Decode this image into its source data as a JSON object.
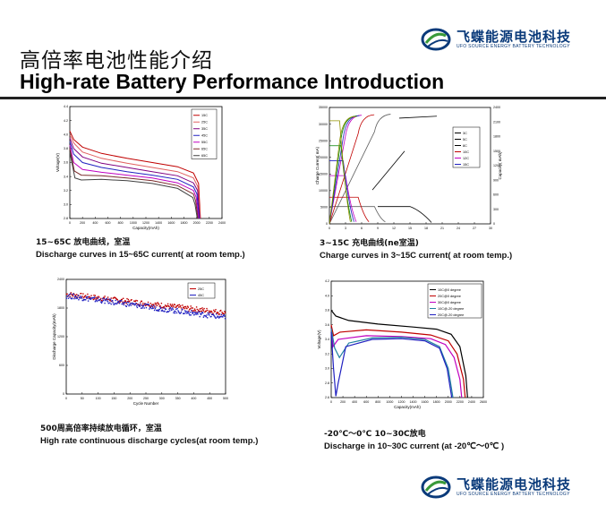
{
  "header": {
    "title_cn": "高倍率电池性能介绍",
    "title_en": "High-rate Battery Performance Introduction"
  },
  "logo": {
    "name_cn": "飞蝶能源电池科技",
    "name_en": "UFO SOURCE ENERGY BATTERY TECHNOLOGY",
    "colors": {
      "blue": "#0a3a7a",
      "green": "#3a9a3a"
    }
  },
  "captions": {
    "discharge_rate": {
      "cn": "15~65C 放电曲线，室温",
      "en": "Discharge curves in 15~65C current( at room temp.)"
    },
    "charge_rate": {
      "cn": "3~15C 充电曲线",
      "cn_overlap": "(ne室温)",
      "en": "Charge curves in 3~15C current( at room temp.)"
    },
    "cycle": {
      "cn": "500周高倍率持续放电循环，室温",
      "en": "High rate continuous discharge cycles(at room temp.)"
    },
    "temperature": {
      "cn": "-20℃～0℃ 10~30C放电",
      "en": "Discharge  in 10~30C current (at -20℃～0℃ )"
    }
  },
  "chart_data": [
    {
      "type": "line",
      "title": "",
      "xlabel": "Capacity(mAh)",
      "ylabel": "Voltage(V)",
      "xlim": [
        0,
        2400
      ],
      "ylim": [
        2.8,
        4.4
      ],
      "x_ticks": [
        "0",
        "200",
        "400",
        "600",
        "800",
        "1000",
        "1200",
        "1400",
        "1600",
        "1800",
        "2000",
        "2200",
        "2400"
      ],
      "y_ticks": [
        "2.8",
        "3.0",
        "3.2",
        "3.4",
        "3.6",
        "3.8",
        "4.0",
        "4.2",
        "4.4"
      ],
      "legend_position": "top-right",
      "series": [
        {
          "name": "15C",
          "color": "#c00000",
          "end_x": 2060,
          "points": [
            [
              0,
              4.05
            ],
            [
              60,
              3.93
            ],
            [
              200,
              3.82
            ],
            [
              500,
              3.73
            ],
            [
              900,
              3.66
            ],
            [
              1300,
              3.6
            ],
            [
              1700,
              3.54
            ],
            [
              1950,
              3.45
            ],
            [
              2030,
              3.3
            ],
            [
              2060,
              2.8
            ]
          ]
        },
        {
          "name": "25C",
          "color": "#e06060",
          "end_x": 2055,
          "points": [
            [
              0,
              4.0
            ],
            [
              60,
              3.88
            ],
            [
              200,
              3.75
            ],
            [
              500,
              3.66
            ],
            [
              900,
              3.59
            ],
            [
              1300,
              3.53
            ],
            [
              1700,
              3.47
            ],
            [
              1950,
              3.38
            ],
            [
              2020,
              3.25
            ],
            [
              2055,
              2.8
            ]
          ]
        },
        {
          "name": "35C",
          "color": "#800080",
          "end_x": 2050,
          "points": [
            [
              0,
              3.95
            ],
            [
              60,
              3.8
            ],
            [
              200,
              3.68
            ],
            [
              500,
              3.59
            ],
            [
              900,
              3.53
            ],
            [
              1300,
              3.47
            ],
            [
              1700,
              3.41
            ],
            [
              1950,
              3.31
            ],
            [
              2015,
              3.2
            ],
            [
              2050,
              2.8
            ]
          ]
        },
        {
          "name": "45C",
          "color": "#2020c0",
          "end_x": 2040,
          "points": [
            [
              0,
              3.9
            ],
            [
              60,
              3.72
            ],
            [
              200,
              3.6
            ],
            [
              500,
              3.53
            ],
            [
              900,
              3.47
            ],
            [
              1300,
              3.42
            ],
            [
              1700,
              3.36
            ],
            [
              1950,
              3.25
            ],
            [
              2005,
              3.15
            ],
            [
              2040,
              2.8
            ]
          ]
        },
        {
          "name": "55C",
          "color": "#c000c0",
          "end_x": 2030,
          "points": [
            [
              0,
              3.85
            ],
            [
              60,
              3.6
            ],
            [
              200,
              3.5
            ],
            [
              500,
              3.46
            ],
            [
              900,
              3.42
            ],
            [
              1300,
              3.38
            ],
            [
              1700,
              3.31
            ],
            [
              1950,
              3.2
            ],
            [
              1995,
              3.1
            ],
            [
              2030,
              2.8
            ]
          ]
        },
        {
          "name": "65C",
          "color": "#7a2a2a",
          "end_x": 2020,
          "points": [
            [
              0,
              3.8
            ],
            [
              70,
              3.48
            ],
            [
              180,
              3.42
            ],
            [
              500,
              3.41
            ],
            [
              900,
              3.38
            ],
            [
              1300,
              3.34
            ],
            [
              1700,
              3.27
            ],
            [
              1950,
              3.15
            ],
            [
              1985,
              3.05
            ],
            [
              2020,
              2.8
            ]
          ]
        },
        {
          "name": "65C",
          "color": "#404040",
          "end_x": 2010,
          "points": [
            [
              0,
              3.75
            ],
            [
              80,
              3.38
            ],
            [
              180,
              3.35
            ],
            [
              500,
              3.36
            ],
            [
              900,
              3.34
            ],
            [
              1300,
              3.3
            ],
            [
              1700,
              3.23
            ],
            [
              1940,
              3.1
            ],
            [
              1975,
              3.0
            ],
            [
              2010,
              2.8
            ]
          ]
        }
      ]
    },
    {
      "type": "line",
      "title": "",
      "xlabel": "",
      "ylabel": "Charge Current( mA)",
      "y2label": "Capacity( mAh)",
      "xlim": [
        0,
        30
      ],
      "ylim": [
        0,
        35000
      ],
      "y2lim": [
        0,
        2400
      ],
      "x_ticks": [
        "0",
        "3",
        "6",
        "9",
        "12",
        "15",
        "18",
        "21",
        "24",
        "27",
        "30"
      ],
      "y_ticks": [
        "0",
        "5000",
        "10000",
        "15000",
        "20000",
        "25000",
        "30000",
        "35000"
      ],
      "y2_ticks": [
        "0",
        "300",
        "600",
        "900",
        "1200",
        "1500",
        "1800",
        "2100",
        "2400"
      ],
      "legend_position": "top-right",
      "series": [
        {
          "name": "3C",
          "color": "#000000"
        },
        {
          "name": "5C",
          "color": "#000000"
        },
        {
          "name": "8C",
          "color": "#000000"
        },
        {
          "name": "10C",
          "color": "#c00000"
        },
        {
          "name": "12C",
          "color": "#c000c0"
        },
        {
          "name": "15C",
          "color": "#2020c0"
        }
      ]
    },
    {
      "type": "scatter",
      "title": "",
      "xlabel": "Cycle Number",
      "ylabel": "Discharge Capacity(mAh)",
      "xlim": [
        0,
        500
      ],
      "ylim": [
        0,
        2400
      ],
      "x_ticks": [
        "0",
        "50",
        "100",
        "150",
        "200",
        "250",
        "300",
        "350",
        "400",
        "450",
        "500"
      ],
      "y_ticks": [
        "0",
        "600",
        "1200",
        "1800",
        "2400"
      ],
      "legend_position": "top-right",
      "series": [
        {
          "name": "25C",
          "color": "#c00000",
          "start": 2090,
          "end": 1700
        },
        {
          "name": "45C",
          "color": "#2020c0",
          "start": 2060,
          "end": 1600
        }
      ]
    },
    {
      "type": "line",
      "title": "",
      "xlabel": "Capacity(mAh)",
      "ylabel": "Voltage(V)",
      "xlim": [
        0,
        2600
      ],
      "ylim": [
        2.6,
        4.2
      ],
      "x_ticks": [
        "0",
        "200",
        "400",
        "600",
        "800",
        "1000",
        "1200",
        "1400",
        "1600",
        "1800",
        "2000",
        "2200",
        "2400",
        "2600"
      ],
      "y_ticks": [
        "2.6",
        "2.8",
        "3.0",
        "3.2",
        "3.4",
        "3.6",
        "3.8",
        "4.0",
        "4.2"
      ],
      "legend_position": "top-right",
      "series": [
        {
          "name": "10C@0 degree",
          "color": "#000000",
          "points": [
            [
              0,
              3.8
            ],
            [
              80,
              3.72
            ],
            [
              300,
              3.66
            ],
            [
              800,
              3.61
            ],
            [
              1400,
              3.57
            ],
            [
              1800,
              3.54
            ],
            [
              2050,
              3.47
            ],
            [
              2200,
              3.3
            ],
            [
              2300,
              2.9
            ],
            [
              2330,
              2.6
            ]
          ]
        },
        {
          "name": "20C@0 degree",
          "color": "#c00000",
          "points": [
            [
              0,
              3.6
            ],
            [
              40,
              3.45
            ],
            [
              150,
              3.5
            ],
            [
              600,
              3.53
            ],
            [
              1200,
              3.5
            ],
            [
              1700,
              3.46
            ],
            [
              2000,
              3.38
            ],
            [
              2150,
              3.2
            ],
            [
              2260,
              2.85
            ],
            [
              2290,
              2.6
            ]
          ]
        },
        {
          "name": "30C@0 degree",
          "color": "#c000c0",
          "points": [
            [
              0,
              3.55
            ],
            [
              30,
              3.3
            ],
            [
              120,
              3.4
            ],
            [
              600,
              3.45
            ],
            [
              1200,
              3.44
            ],
            [
              1700,
              3.41
            ],
            [
              1950,
              3.33
            ],
            [
              2100,
              3.15
            ],
            [
              2200,
              2.85
            ],
            [
              2230,
              2.6
            ]
          ]
        },
        {
          "name": "10C@-20 degree",
          "color": "#2080a0",
          "points": [
            [
              0,
              3.55
            ],
            [
              60,
              3.28
            ],
            [
              140,
              3.15
            ],
            [
              300,
              3.35
            ],
            [
              700,
              3.42
            ],
            [
              1200,
              3.43
            ],
            [
              1600,
              3.4
            ],
            [
              1850,
              3.3
            ],
            [
              2000,
              3.0
            ],
            [
              2080,
              2.6
            ]
          ]
        },
        {
          "name": "20C@-20 degree",
          "color": "#2020c0",
          "points": [
            [
              0,
              3.5
            ],
            [
              40,
              3.0
            ],
            [
              80,
              2.62
            ],
            [
              120,
              2.8
            ],
            [
              250,
              3.3
            ],
            [
              700,
              3.4
            ],
            [
              1200,
              3.41
            ],
            [
              1600,
              3.38
            ],
            [
              1850,
              3.28
            ],
            [
              1980,
              3.0
            ],
            [
              2060,
              2.6
            ]
          ]
        }
      ]
    }
  ]
}
